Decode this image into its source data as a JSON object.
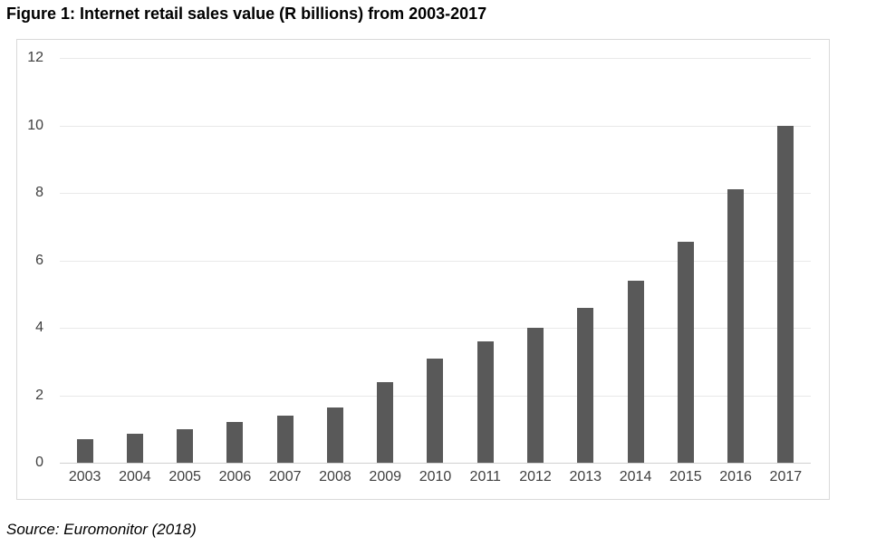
{
  "figure": {
    "title": "Figure 1: Internet retail sales value (R billions) from 2003-2017",
    "source": "Source: Euromonitor (2018)"
  },
  "colors": {
    "bar": "#595959",
    "gridline": "#e9e9e9",
    "axis_baseline": "#d0d0d0",
    "box_border": "#d9d9d9",
    "axis_label": "#3f3f3f",
    "title_text": "#000000"
  },
  "chart_data": {
    "type": "bar",
    "title": "Figure 1: Internet retail sales value (R billions) from 2003-2017",
    "categories": [
      "2003",
      "2004",
      "2005",
      "2006",
      "2007",
      "2008",
      "2009",
      "2010",
      "2011",
      "2012",
      "2013",
      "2014",
      "2015",
      "2016",
      "2017"
    ],
    "values": [
      0.7,
      0.85,
      1.0,
      1.2,
      1.4,
      1.65,
      2.4,
      3.1,
      3.6,
      4.0,
      4.6,
      5.4,
      6.55,
      8.1,
      10.0
    ],
    "xlabel": "",
    "ylabel": "",
    "ylim": [
      0,
      12
    ],
    "yticks": [
      0,
      2,
      4,
      6,
      8,
      10,
      12
    ],
    "grid": true,
    "legend": false,
    "bar_color": "#595959",
    "source": "Source: Euromonitor (2018)"
  }
}
